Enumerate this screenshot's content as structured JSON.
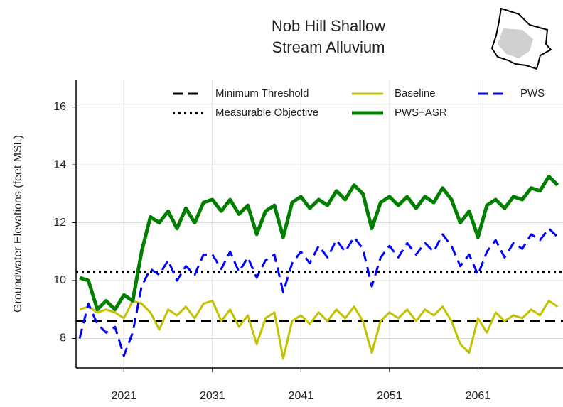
{
  "chart_data": {
    "type": "line",
    "title": [
      "Nob Hill Shallow",
      "Stream Alluvium"
    ],
    "y_label": "Groundwater Elevations (feet MSL)",
    "x": [
      2016,
      2017,
      2018,
      2019,
      2020,
      2021,
      2022,
      2023,
      2024,
      2025,
      2026,
      2027,
      2028,
      2029,
      2030,
      2031,
      2032,
      2033,
      2034,
      2035,
      2036,
      2037,
      2038,
      2039,
      2040,
      2041,
      2042,
      2043,
      2044,
      2045,
      2046,
      2047,
      2048,
      2049,
      2050,
      2051,
      2052,
      2053,
      2054,
      2055,
      2056,
      2057,
      2058,
      2059,
      2060,
      2061,
      2062,
      2063,
      2064,
      2065,
      2066,
      2067,
      2068,
      2069,
      2070
    ],
    "series": [
      {
        "name": "Baseline",
        "color": "#c2c200",
        "dash": "solid",
        "linewidth": 3,
        "values": [
          9.0,
          9.1,
          8.9,
          9.0,
          8.9,
          8.7,
          9.3,
          9.2,
          8.9,
          8.3,
          9.0,
          8.8,
          9.1,
          8.7,
          9.2,
          9.3,
          8.6,
          9.0,
          8.4,
          8.8,
          7.8,
          8.7,
          8.9,
          7.3,
          8.6,
          8.8,
          8.5,
          8.9,
          8.6,
          9.0,
          8.7,
          9.1,
          8.6,
          7.5,
          8.6,
          8.9,
          8.7,
          9.0,
          8.6,
          9.0,
          8.8,
          9.1,
          8.6,
          7.8,
          7.5,
          8.7,
          8.2,
          8.9,
          8.6,
          8.8,
          8.7,
          9.0,
          8.8,
          9.3,
          9.1
        ]
      },
      {
        "name": "PWS+ASR",
        "color": "#007f00",
        "dash": "solid",
        "linewidth": 5,
        "values": [
          10.1,
          10.0,
          9.0,
          9.3,
          9.0,
          9.5,
          9.3,
          11.0,
          12.2,
          12.0,
          12.4,
          11.8,
          12.5,
          12.0,
          12.7,
          12.8,
          12.4,
          12.8,
          12.3,
          12.6,
          11.6,
          12.4,
          12.6,
          11.5,
          12.7,
          12.9,
          12.5,
          12.8,
          12.6,
          13.1,
          12.8,
          13.3,
          13.0,
          11.8,
          12.7,
          12.9,
          12.6,
          12.9,
          12.5,
          12.9,
          12.7,
          13.2,
          12.8,
          12.0,
          12.4,
          11.5,
          12.6,
          12.8,
          12.5,
          12.9,
          12.8,
          13.2,
          13.1,
          13.6,
          13.3
        ]
      },
      {
        "name": "PWS",
        "color": "#0000ff",
        "dash": "dashed",
        "linewidth": 3,
        "values": [
          8.0,
          9.2,
          8.5,
          8.2,
          8.4,
          7.4,
          8.2,
          9.8,
          10.4,
          10.2,
          10.7,
          10.0,
          10.5,
          10.2,
          10.9,
          10.9,
          10.4,
          11.0,
          10.3,
          10.8,
          10.1,
          10.7,
          10.9,
          9.6,
          10.6,
          11.0,
          10.6,
          11.2,
          10.8,
          11.4,
          11.0,
          11.5,
          11.1,
          9.8,
          10.8,
          11.2,
          10.8,
          11.3,
          10.9,
          11.3,
          11.0,
          11.6,
          11.2,
          10.5,
          10.9,
          10.2,
          11.0,
          11.4,
          10.8,
          11.3,
          11.1,
          11.6,
          11.4,
          11.8,
          11.5
        ]
      }
    ],
    "reference_lines": [
      {
        "name": "Minimum Threshold",
        "value": 8.6,
        "color": "#000000",
        "dash": "dashed"
      },
      {
        "name": "Measurable Objective",
        "value": 10.3,
        "color": "#000000",
        "dash": "dotted"
      }
    ],
    "xlim": [
      2015.6,
      2070.6
    ],
    "xticks": [
      2021,
      2031,
      2041,
      2051,
      2061
    ],
    "ylim": [
      6.98,
      16.95
    ],
    "yticks": [
      8,
      10,
      12,
      14,
      16
    ],
    "grid": true
  }
}
